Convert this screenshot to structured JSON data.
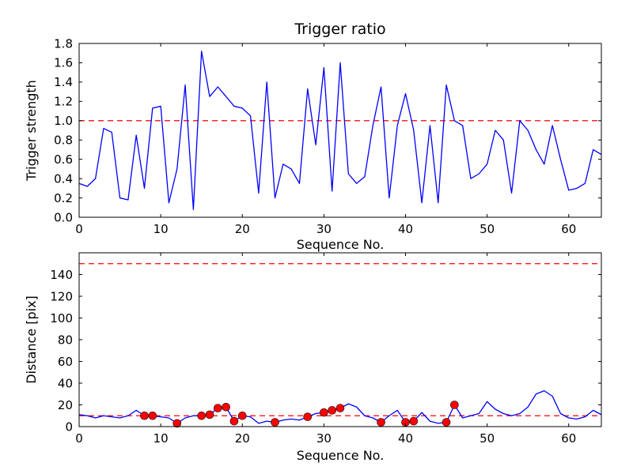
{
  "figure": {
    "colors": {
      "background": "#ffffff",
      "line": "#0000ff",
      "threshold": "#ff0000",
      "marker_face": "#ff0000",
      "marker_edge": "#000000",
      "axes": "#000000"
    }
  },
  "chart_data": [
    {
      "name": "trigger-strength-subplot",
      "type": "line",
      "title": "Trigger ratio",
      "xlabel": "Sequence No.",
      "ylabel": "Trigger strength",
      "xlim": [
        0,
        64
      ],
      "ylim": [
        0,
        1.8
      ],
      "grid": false,
      "xtick_values": [
        0,
        10,
        20,
        30,
        40,
        50,
        60
      ],
      "xtick_labels": [
        "0",
        "10",
        "20",
        "30",
        "40",
        "50",
        "60"
      ],
      "ytick_values": [
        0,
        0.2,
        0.4,
        0.6,
        0.8,
        1.0,
        1.2,
        1.4,
        1.6,
        1.8
      ],
      "ytick_labels": [
        "0.0",
        "0.2",
        "0.4",
        "0.6",
        "0.8",
        "1.0",
        "1.2",
        "1.4",
        "1.6",
        "1.8"
      ],
      "threshold_lines": [
        1.0
      ],
      "series": [
        {
          "name": "trigger-strength-line",
          "x_start": 0,
          "x_step": 1,
          "y": [
            0.35,
            0.32,
            0.4,
            0.92,
            0.88,
            0.2,
            0.18,
            0.85,
            0.3,
            1.13,
            1.15,
            0.15,
            0.5,
            1.37,
            0.08,
            1.72,
            1.25,
            1.35,
            1.25,
            1.15,
            1.13,
            1.05,
            0.25,
            1.4,
            0.2,
            0.55,
            0.5,
            0.35,
            1.33,
            0.75,
            1.55,
            0.27,
            1.6,
            0.45,
            0.35,
            0.42,
            0.95,
            1.35,
            0.2,
            0.95,
            1.28,
            0.9,
            0.15,
            0.95,
            0.15,
            1.37,
            1.0,
            0.95,
            0.4,
            0.45,
            0.55,
            0.9,
            0.8,
            0.25,
            1.0,
            0.9,
            0.7,
            0.55,
            0.95,
            0.6,
            0.28,
            0.3,
            0.35,
            0.7,
            0.65
          ]
        }
      ],
      "scatter": []
    },
    {
      "name": "distance-subplot",
      "type": "line",
      "title": "",
      "xlabel": "Sequence No.",
      "ylabel": "Distance [pix]",
      "xlim": [
        0,
        64
      ],
      "ylim": [
        0,
        160
      ],
      "grid": false,
      "xtick_values": [
        0,
        10,
        20,
        30,
        40,
        50,
        60
      ],
      "xtick_labels": [
        "0",
        "10",
        "20",
        "30",
        "40",
        "50",
        "60"
      ],
      "ytick_values": [
        0,
        20,
        40,
        60,
        80,
        100,
        120,
        140
      ],
      "ytick_labels": [
        "0",
        "20",
        "40",
        "60",
        "80",
        "100",
        "120",
        "140"
      ],
      "threshold_lines": [
        150,
        10
      ],
      "series": [
        {
          "name": "distance-line",
          "x_start": 0,
          "x_step": 1,
          "y": [
            11,
            10,
            8,
            10,
            9,
            8,
            10,
            15,
            10,
            10,
            9,
            8,
            3,
            8,
            10,
            10,
            11,
            17,
            18,
            5,
            10,
            9,
            3,
            5,
            4,
            6,
            7,
            6,
            9,
            12,
            13,
            15,
            17,
            21,
            18,
            10,
            8,
            4,
            10,
            15,
            4,
            5,
            13,
            5,
            3,
            4,
            20,
            8,
            10,
            12,
            23,
            16,
            12,
            10,
            12,
            18,
            30,
            33,
            28,
            12,
            8,
            7,
            9,
            15,
            11
          ]
        }
      ],
      "scatter": [
        {
          "name": "trigger-event-markers",
          "points": [
            [
              8,
              10
            ],
            [
              9,
              10
            ],
            [
              12,
              3
            ],
            [
              15,
              10
            ],
            [
              16,
              11
            ],
            [
              17,
              17
            ],
            [
              18,
              18
            ],
            [
              19,
              5
            ],
            [
              20,
              10
            ],
            [
              24,
              4
            ],
            [
              28,
              9
            ],
            [
              30,
              13
            ],
            [
              31,
              15
            ],
            [
              32,
              17
            ],
            [
              37,
              4
            ],
            [
              40,
              4
            ],
            [
              41,
              5
            ],
            [
              45,
              4
            ],
            [
              46,
              20
            ]
          ]
        }
      ]
    }
  ]
}
